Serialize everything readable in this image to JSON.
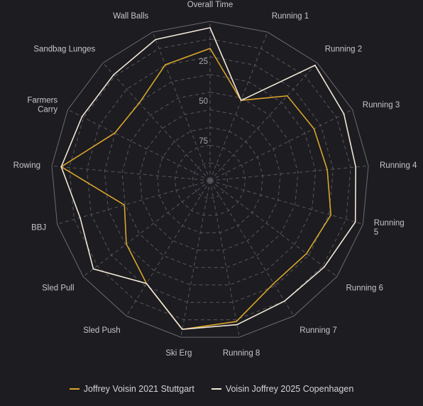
{
  "chart_data": {
    "type": "radar",
    "title": "",
    "categories": [
      "Overall Time",
      "Running 1",
      "Running 2",
      "Running 3",
      "Running 4",
      "Running 5",
      "Running 6",
      "Running 7",
      "Running 8",
      "Ski Erg",
      "Sled Push",
      "Sled Pull",
      "BBJ",
      "Rowing",
      "Farmers Carry",
      "Sandbag Lunges",
      "Wall Balls"
    ],
    "category_label_lines": [
      [
        "Overall Time"
      ],
      [
        "Running 1"
      ],
      [
        "Running 2"
      ],
      [
        "Running 3"
      ],
      [
        "Running 4"
      ],
      [
        "Running",
        "5"
      ],
      [
        "Running 6"
      ],
      [
        "Running 7"
      ],
      [
        "Running 8"
      ],
      [
        "Ski Erg"
      ],
      [
        "Sled Push"
      ],
      [
        "Sled Pull"
      ],
      [
        "BBJ"
      ],
      [
        "Rowing"
      ],
      [
        "Farmers",
        "Carry"
      ],
      [
        "Sandbag Lunges"
      ],
      [
        "Wall Balls"
      ]
    ],
    "radial_axis": {
      "reversed": true,
      "range": [
        0,
        100
      ],
      "tick_values": [
        25,
        50,
        75
      ],
      "tick_labels": [
        "25",
        "50",
        "75"
      ]
    },
    "series": [
      {
        "name": "Joffrey Voisin 2021 Stuttgart",
        "color": "#d9a52a",
        "values": [
          17,
          46,
          28,
          27,
          26,
          21,
          24,
          24,
          10,
          5,
          24,
          34,
          44,
          6,
          33,
          34,
          22
        ]
      },
      {
        "name": "Voisin Joffrey 2025 Copenhagen",
        "color": "#f1e6d6",
        "values": [
          4,
          46,
          2,
          6,
          8,
          5,
          10,
          11,
          8,
          5,
          24,
          8,
          15,
          6,
          10,
          10,
          5
        ]
      }
    ],
    "legend_position": "bottom",
    "grid": true
  }
}
